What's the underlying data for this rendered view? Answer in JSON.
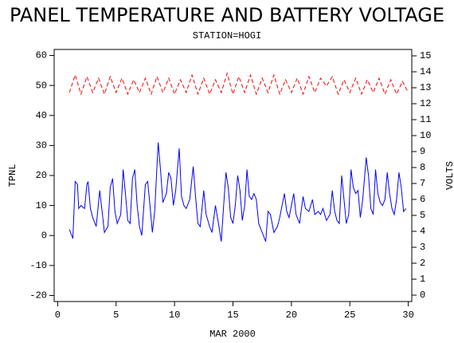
{
  "chart_data": {
    "type": "line",
    "title": "PANEL TEMPERATURE AND BATTERY VOLTAGE",
    "subtitle": "STATION=HOGI",
    "x_label": "MAR 2000",
    "y_label": "TPNL",
    "y2_label": "VOLTS",
    "xlim": [
      -0.3,
      30.3
    ],
    "xticks": [
      0,
      5,
      10,
      15,
      20,
      25,
      30
    ],
    "ylim": [
      -22,
      62
    ],
    "yticks": [
      -20,
      -10,
      0,
      10,
      20,
      30,
      40,
      50,
      60
    ],
    "y2lim": [
      -0.4,
      15.4
    ],
    "y2ticks": [
      0,
      1,
      2,
      3,
      4,
      5,
      6,
      7,
      8,
      9,
      10,
      11,
      12,
      13,
      14,
      15
    ],
    "series": [
      {
        "color": "#0000ff",
        "dashed": false,
        "x": [
          1.0,
          1.3,
          1.5,
          1.7,
          1.8,
          2.0,
          2.3,
          2.5,
          2.6,
          2.8,
          3.0,
          3.3,
          3.6,
          3.8,
          4.0,
          4.3,
          4.5,
          4.7,
          4.9,
          5.1,
          5.4,
          5.6,
          5.8,
          6.0,
          6.2,
          6.4,
          6.6,
          6.8,
          7.0,
          7.2,
          7.5,
          7.7,
          7.9,
          8.1,
          8.3,
          8.6,
          8.8,
          9.0,
          9.3,
          9.5,
          9.7,
          9.9,
          10.1,
          10.4,
          10.6,
          10.8,
          11.0,
          11.3,
          11.6,
          11.8,
          12.0,
          12.2,
          12.5,
          12.7,
          13.0,
          13.2,
          13.5,
          13.8,
          14.0,
          14.2,
          14.4,
          14.6,
          14.8,
          15.0,
          15.2,
          15.4,
          15.6,
          15.8,
          16.0,
          16.2,
          16.4,
          16.6,
          16.8,
          17.0,
          17.2,
          17.5,
          17.8,
          18.0,
          18.2,
          18.5,
          18.8,
          19.0,
          19.2,
          19.4,
          19.6,
          19.8,
          20.2,
          20.4,
          20.7,
          21.0,
          21.2,
          21.5,
          21.8,
          22.0,
          22.3,
          22.5,
          22.7,
          23.0,
          23.3,
          23.5,
          23.7,
          23.9,
          24.1,
          24.3,
          24.5,
          24.7,
          24.9,
          25.1,
          25.3,
          25.5,
          25.7,
          25.9,
          26.1,
          26.4,
          26.6,
          26.8,
          27.0,
          27.2,
          27.4,
          27.6,
          27.8,
          28.0,
          28.2,
          28.4,
          28.6,
          28.8,
          29.0,
          29.2,
          29.4,
          29.6,
          29.8
        ],
        "values": [
          2,
          -1,
          18,
          17,
          9,
          10,
          9,
          17,
          18,
          9,
          6,
          3,
          15,
          8,
          1,
          3,
          16,
          19,
          8,
          4,
          7,
          22,
          14,
          5,
          4,
          19,
          22,
          10,
          3,
          0,
          17,
          18,
          10,
          1,
          8,
          31,
          22,
          11,
          14,
          21,
          19,
          10,
          15,
          29,
          13,
          10,
          9,
          12,
          23,
          13,
          4,
          3,
          15,
          7,
          3,
          1,
          10,
          3,
          -2,
          10,
          21,
          16,
          6,
          4,
          10,
          20,
          15,
          5,
          10,
          22,
          13,
          12,
          14,
          12,
          4,
          1,
          -2,
          8,
          7,
          1,
          3,
          6,
          10,
          14,
          8,
          6,
          14,
          7,
          4,
          13,
          9,
          8,
          12,
          7,
          8,
          7,
          9,
          5,
          7,
          15,
          8,
          5,
          4,
          20,
          12,
          4,
          7,
          22,
          16,
          14,
          15,
          6,
          12,
          26,
          20,
          9,
          7,
          22,
          14,
          11,
          10,
          12,
          21,
          14,
          9,
          7,
          12,
          21,
          16,
          8,
          9
        ]
      },
      {
        "color": "#ff0000",
        "dashed": true,
        "axis": "y2",
        "x": [
          1,
          1.5,
          2,
          2.5,
          3,
          3.5,
          4,
          4.5,
          5,
          5.5,
          6,
          6.5,
          7,
          7.5,
          8,
          8.5,
          9,
          9.5,
          10,
          10.5,
          11,
          11.5,
          12,
          12.5,
          13,
          13.5,
          14,
          14.5,
          15,
          15.5,
          16,
          16.5,
          17,
          17.5,
          18,
          18.5,
          19,
          19.5,
          20,
          20.5,
          21,
          21.5,
          22,
          22.5,
          23,
          23.5,
          24,
          24.5,
          25,
          25.5,
          26,
          26.5,
          27,
          27.5,
          28,
          28.5,
          29,
          29.5,
          30
        ],
        "values": [
          12.7,
          13.8,
          12.6,
          13.7,
          12.7,
          13.6,
          12.6,
          13.7,
          12.7,
          13.6,
          12.6,
          13.5,
          12.7,
          13.6,
          12.6,
          13.7,
          12.7,
          13.6,
          12.6,
          13.5,
          12.7,
          13.8,
          12.6,
          13.6,
          12.6,
          13.5,
          12.7,
          13.9,
          12.6,
          13.7,
          12.7,
          13.8,
          12.6,
          13.6,
          12.7,
          13.8,
          12.6,
          13.5,
          12.7,
          13.6,
          12.6,
          13.7,
          12.7,
          13.6,
          13.1,
          13.7,
          12.6,
          13.5,
          12.7,
          13.6,
          12.6,
          13.5,
          12.7,
          13.6,
          12.6,
          13.5,
          12.6,
          13.4,
          12.7
        ]
      }
    ]
  }
}
